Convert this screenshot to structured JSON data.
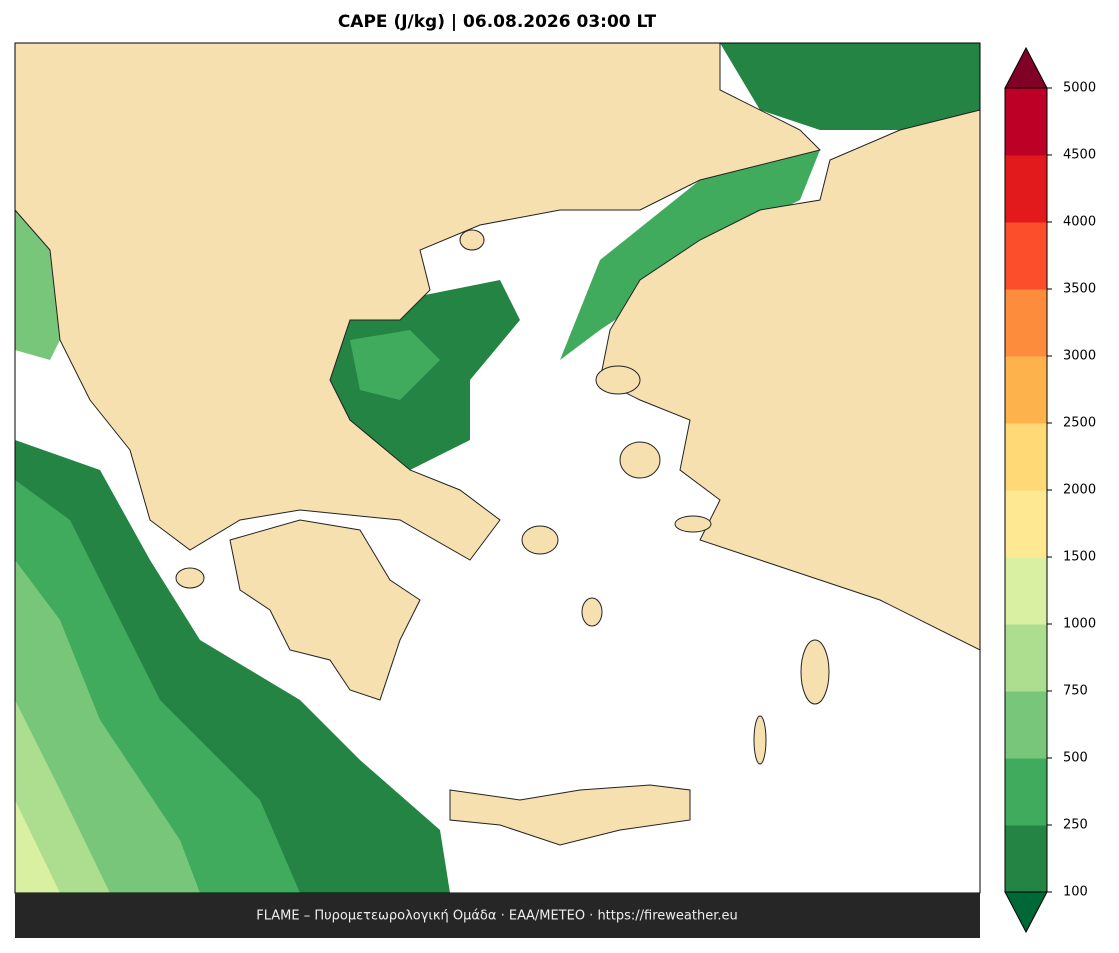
{
  "title": "CAPE (J/kg)  |  06.08.2026 03:00 LT",
  "footer": "FLAME – Πυρομετεωρολογική Ομάδα · ΕΑΑ/METEO · https://fireweather.eu",
  "colorbar": {
    "levels": [
      100,
      250,
      500,
      750,
      1000,
      1500,
      2000,
      2500,
      3000,
      3500,
      4000,
      4500,
      5000
    ],
    "colors": [
      "#238443",
      "#41ab5d",
      "#78c679",
      "#addd8e",
      "#d9f0a3",
      "#fee891",
      "#fed976",
      "#feb24c",
      "#fd8d3c",
      "#fc4e2a",
      "#e31a1c",
      "#bd0026"
    ],
    "under_color": "#006837",
    "over_color": "#800026"
  }
}
